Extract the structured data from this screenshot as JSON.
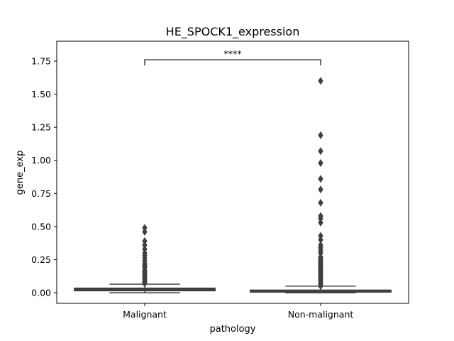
{
  "chart_data": {
    "type": "box",
    "title": "HE_SPOCK1_expression",
    "xlabel": "pathology",
    "ylabel": "gene_exp",
    "ylim": [
      -0.08,
      1.9
    ],
    "yticks": [
      0.0,
      0.25,
      0.5,
      0.75,
      1.0,
      1.25,
      1.5,
      1.75
    ],
    "ytick_labels": [
      "0.00",
      "0.25",
      "0.50",
      "0.75",
      "1.00",
      "1.25",
      "1.50",
      "1.75"
    ],
    "categories": [
      "Malignant",
      "Non-malignant"
    ],
    "boxes": [
      {
        "name": "Malignant",
        "q1": 0.015,
        "median": 0.025,
        "q3": 0.035,
        "whisker_low": 0.0,
        "whisker_high": 0.065,
        "outliers": [
          0.07,
          0.08,
          0.09,
          0.1,
          0.11,
          0.12,
          0.13,
          0.14,
          0.15,
          0.16,
          0.17,
          0.19,
          0.2,
          0.21,
          0.22,
          0.24,
          0.26,
          0.28,
          0.3,
          0.33,
          0.36,
          0.39,
          0.46,
          0.49
        ]
      },
      {
        "name": "Non-malignant",
        "q1": 0.005,
        "median": 0.01,
        "q3": 0.02,
        "whisker_low": 0.0,
        "whisker_high": 0.05,
        "outliers": [
          0.05,
          0.06,
          0.07,
          0.08,
          0.09,
          0.1,
          0.11,
          0.12,
          0.13,
          0.14,
          0.15,
          0.16,
          0.17,
          0.18,
          0.19,
          0.2,
          0.21,
          0.22,
          0.23,
          0.24,
          0.25,
          0.26,
          0.27,
          0.3,
          0.32,
          0.34,
          0.36,
          0.4,
          0.43,
          0.53,
          0.56,
          0.58,
          0.68,
          0.78,
          0.86,
          0.98,
          1.07,
          1.19,
          1.6
        ]
      }
    ],
    "annotation": {
      "text": "****",
      "y": 1.76,
      "between": [
        "Malignant",
        "Non-malignant"
      ]
    },
    "colors": {
      "box_fill": "#3f3f3f",
      "line": "#3f3f3f",
      "axis": "#000000"
    }
  }
}
